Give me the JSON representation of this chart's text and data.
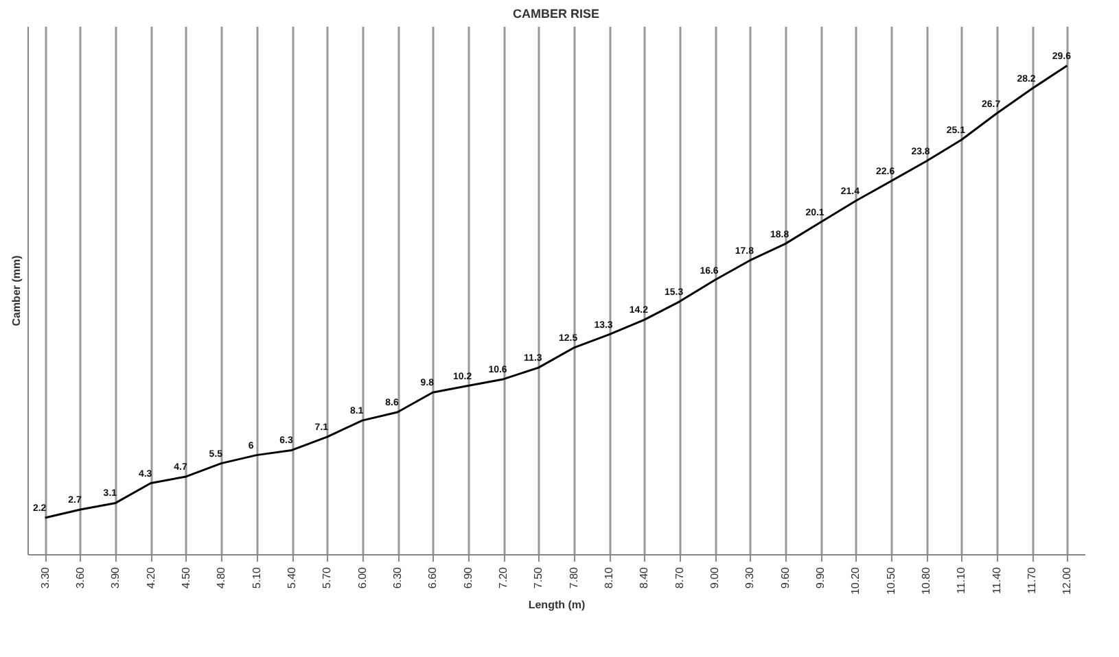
{
  "chart_data": {
    "type": "line",
    "title": "CAMBER RISE",
    "xlabel": "Length (m)",
    "ylabel": "Camber (mm)",
    "categories": [
      "3.30",
      "3.60",
      "3.90",
      "4.20",
      "4.50",
      "4.80",
      "5.10",
      "5.40",
      "5.70",
      "6.00",
      "6.30",
      "6.60",
      "6.90",
      "7.20",
      "7.50",
      "7.80",
      "8.10",
      "8.40",
      "8.70",
      "9.00",
      "9.30",
      "9.60",
      "9.90",
      "10.20",
      "10.50",
      "10.80",
      "11.10",
      "11.40",
      "11.70",
      "12.00"
    ],
    "series": [
      {
        "color": "#000000",
        "values": [
          2.2,
          2.7,
          3.1,
          4.3,
          4.7,
          5.5,
          6,
          6.3,
          7.1,
          8.1,
          8.6,
          9.8,
          10.2,
          10.6,
          11.3,
          12.5,
          13.3,
          14.2,
          15.3,
          16.6,
          17.8,
          18.8,
          20.1,
          21.4,
          22.6,
          23.8,
          25.1,
          26.7,
          28.2,
          29.6
        ]
      }
    ],
    "ylim": [
      0,
      32
    ],
    "grid": "x",
    "tick_labels": "x",
    "data_labels": true,
    "marker": "none",
    "line_style": "solid"
  }
}
